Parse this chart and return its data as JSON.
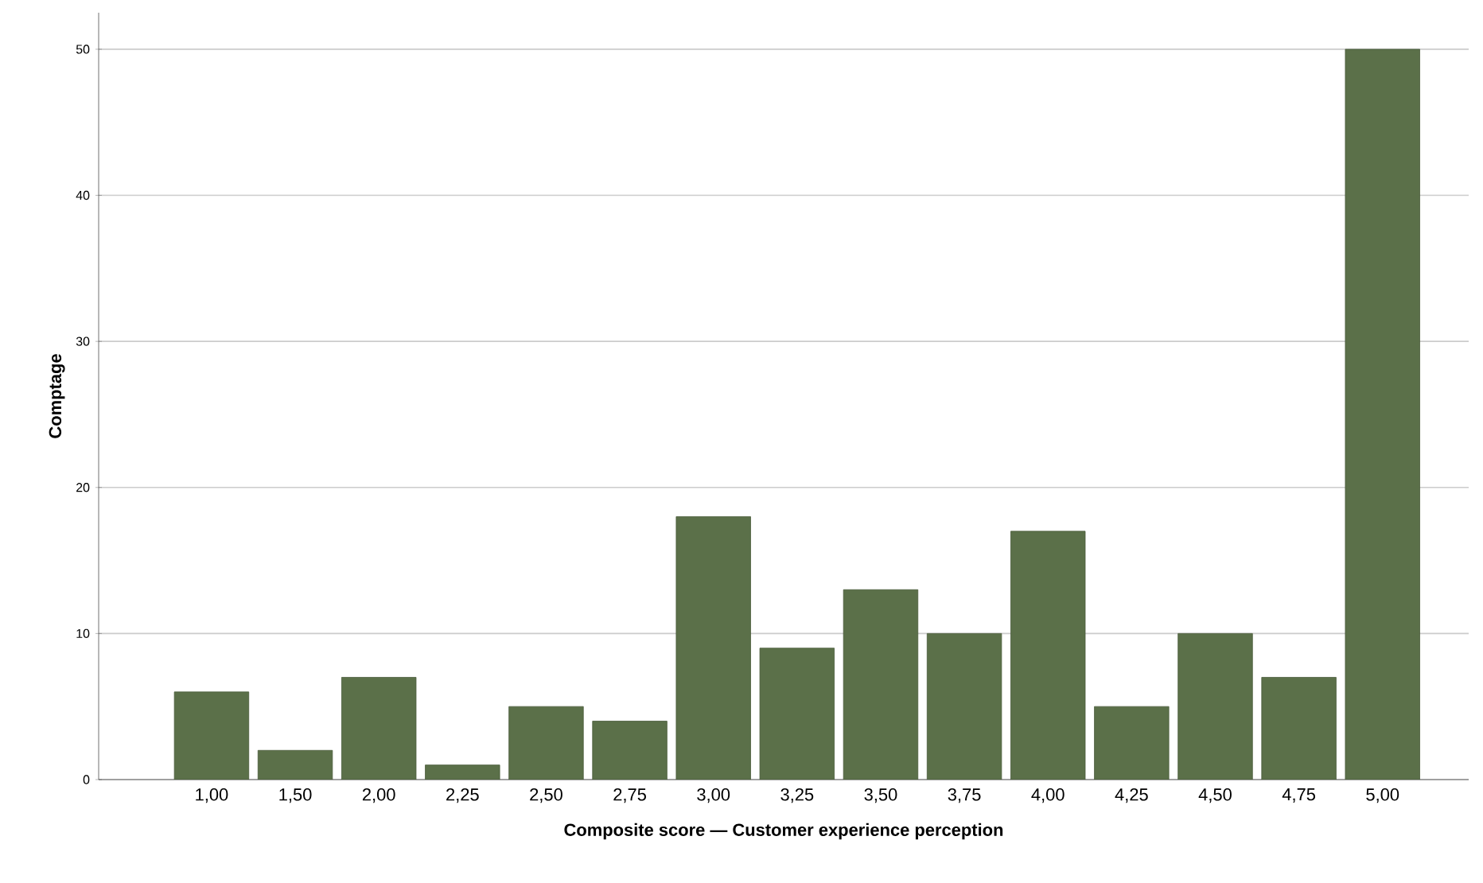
{
  "chart_data": {
    "type": "bar",
    "xlabel": "Composite score — Customer experience perception",
    "ylabel": "Comptage",
    "categories": [
      "1,00",
      "1,50",
      "2,00",
      "2,25",
      "2,50",
      "2,75",
      "3,00",
      "3,25",
      "3,50",
      "3,75",
      "4,00",
      "4,25",
      "4,50",
      "4,75",
      "5,00"
    ],
    "values": [
      6,
      2,
      7,
      1,
      5,
      4,
      18,
      9,
      13,
      10,
      17,
      5,
      10,
      7,
      50
    ],
    "color": "#5b7049",
    "ylim": [
      0,
      52.5
    ],
    "yticks": [
      0,
      10,
      20,
      30,
      40,
      50
    ],
    "grid": "y"
  }
}
